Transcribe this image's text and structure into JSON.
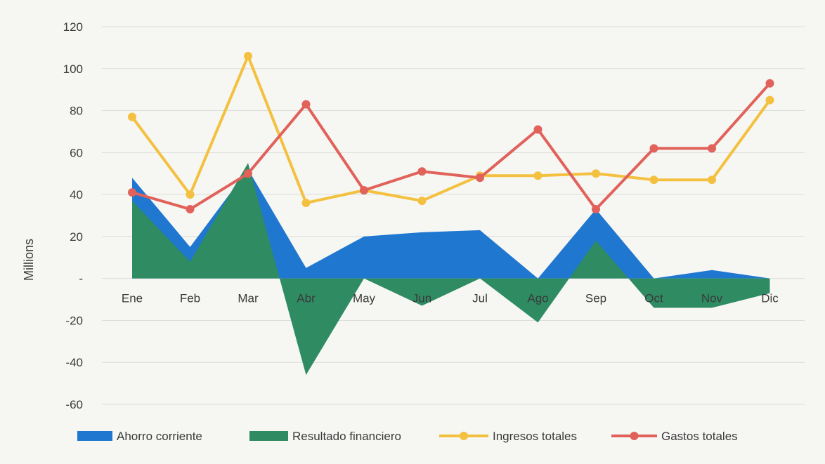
{
  "chart_data": {
    "type": "line",
    "title": "",
    "xlabel": "",
    "ylabel": "Millions",
    "ylim": [
      -60,
      120
    ],
    "yticks": [
      -60,
      -40,
      -20,
      0,
      20,
      40,
      60,
      80,
      100,
      120
    ],
    "ytick_labels": [
      "-60",
      "-40",
      "-20",
      "-",
      "20",
      "40",
      "60",
      "80",
      "100",
      "120"
    ],
    "categories": [
      "Ene",
      "Feb",
      "Mar",
      "Abr",
      "May",
      "Jun",
      "Jul",
      "Ago",
      "Sep",
      "Oct",
      "Nov",
      "Dic"
    ],
    "grid": true,
    "legend_position": "bottom",
    "series": [
      {
        "name": "Ahorro corriente",
        "kind": "area",
        "color": "#1f77d0",
        "values": [
          48,
          15,
          52,
          5,
          20,
          22,
          23,
          0,
          33,
          0,
          4,
          0
        ]
      },
      {
        "name": "Resultado financiero",
        "kind": "area",
        "color": "#2e8b62",
        "values": [
          37,
          8,
          55,
          -46,
          0,
          -13,
          0,
          -21,
          18,
          -14,
          -14,
          -7
        ]
      },
      {
        "name": "Ingresos totales",
        "kind": "line",
        "color": "#f3c13f",
        "values": [
          77,
          40,
          106,
          36,
          42,
          37,
          49,
          49,
          50,
          47,
          47,
          85
        ]
      },
      {
        "name": "Gastos totales",
        "kind": "line",
        "color": "#e0625a",
        "values": [
          41,
          33,
          50,
          83,
          42,
          51,
          48,
          71,
          33,
          62,
          62,
          93
        ]
      }
    ]
  }
}
